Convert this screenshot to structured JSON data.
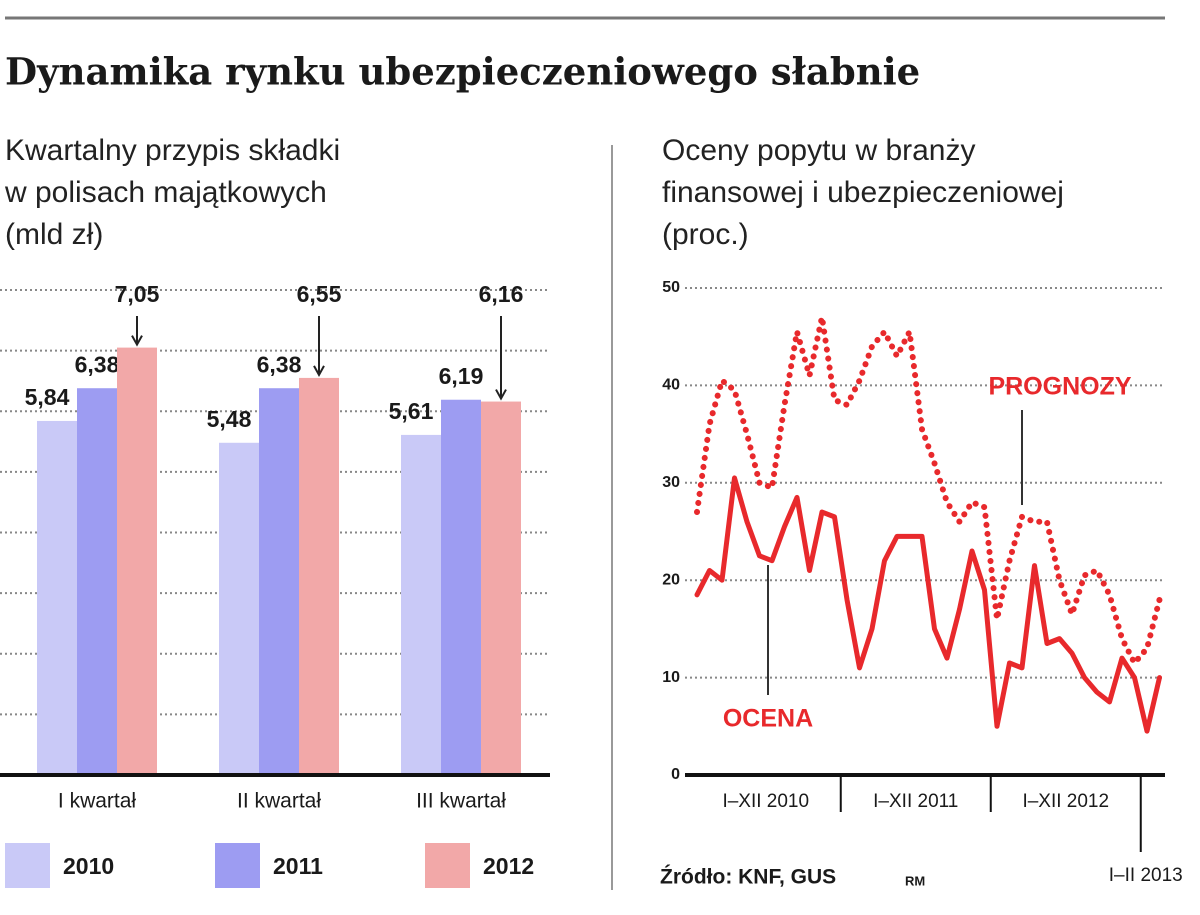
{
  "title": "Dynamika rynku ubezpieczeniowego słabnie",
  "source": "Źródło: KNF, GUS",
  "credit": "RM",
  "chart_data": [
    {
      "type": "bar",
      "title": [
        "Kwartalny przypis składki",
        "w polisach majątkowych",
        "(mld zł)"
      ],
      "categories": [
        "I kwartał",
        "II kwartał",
        "III kwartał"
      ],
      "series": [
        {
          "name": "2010",
          "color": "#c9c9f7",
          "values": [
            5.84,
            5.48,
            5.61
          ],
          "value_labels": [
            "5,84",
            "5,48",
            "5,61"
          ]
        },
        {
          "name": "2011",
          "color": "#9d9cf2",
          "values": [
            6.38,
            6.38,
            6.19
          ],
          "value_labels": [
            "6,38",
            "6,38",
            "6,19"
          ]
        },
        {
          "name": "2012",
          "color": "#f2a8a8",
          "values": [
            7.05,
            6.55,
            6.16
          ],
          "value_labels": [
            "7,05",
            "6,55",
            "6,16"
          ]
        }
      ],
      "ylim": [
        0,
        8
      ],
      "yticks": [
        0,
        1,
        2,
        3,
        4,
        5,
        6,
        7,
        8
      ],
      "grid": true
    },
    {
      "type": "line",
      "title": [
        "Oceny popytu w branży",
        "finansowej i ubezpieczeniowej",
        "(proc.)"
      ],
      "categories": [
        null,
        null,
        null,
        null,
        null,
        null,
        null,
        null,
        null,
        null,
        null,
        null,
        null,
        null,
        null,
        null,
        null,
        null,
        null,
        null,
        null,
        null,
        null,
        null,
        null,
        null,
        null,
        null,
        null,
        null,
        null,
        null,
        null,
        null,
        null,
        null,
        null,
        null
      ],
      "x_groups": [
        {
          "label": "I–XII 2010",
          "size": 12
        },
        {
          "label": "I–XII 2011",
          "size": 12
        },
        {
          "label": "I–XII 2012",
          "size": 12
        },
        {
          "label": "I–II 2013",
          "size": 2
        }
      ],
      "series": [
        {
          "name": "PROGNOZY",
          "color": "#e8292c",
          "style": "dotted",
          "values": [
            27,
            36,
            40.5,
            39.5,
            35,
            30,
            29.5,
            38,
            45.5,
            41,
            47,
            38.5,
            38,
            40.5,
            44,
            45.5,
            43,
            45.5,
            35.5,
            32,
            28,
            26,
            28,
            27.5,
            16,
            22,
            26.5,
            26,
            26,
            20,
            16.5,
            20.5,
            21,
            18.5,
            14,
            11.5,
            13,
            18
          ]
        },
        {
          "name": "OCENA",
          "color": "#e8292c",
          "style": "solid",
          "values": [
            18.5,
            21,
            20,
            30.5,
            26,
            22.5,
            22,
            25.5,
            28.5,
            21,
            27,
            26.5,
            18,
            11,
            15,
            22,
            24.5,
            24.5,
            24.5,
            15,
            12,
            17,
            23,
            19,
            5,
            11.5,
            11,
            21.5,
            13.5,
            14,
            12.5,
            10,
            8.5,
            7.5,
            12,
            10,
            4.5,
            10
          ]
        }
      ],
      "ylim": [
        0,
        50
      ],
      "yticks": [
        0,
        10,
        20,
        30,
        40,
        50
      ],
      "grid": true
    }
  ]
}
